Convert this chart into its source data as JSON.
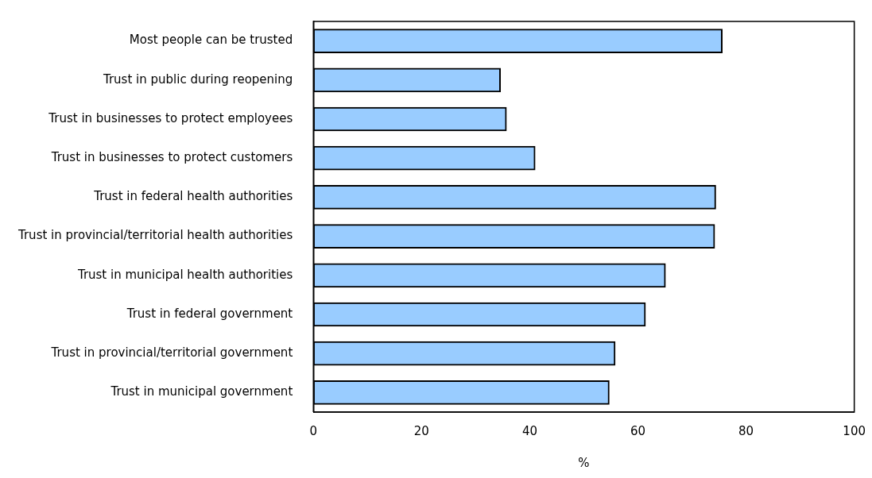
{
  "chart_data": {
    "type": "bar",
    "orientation": "horizontal",
    "xlabel": "%",
    "categories": [
      "Most people can be trusted",
      "Trust in public during reopening",
      "Trust in businesses to protect employees",
      "Trust in businesses to protect customers",
      "Trust in federal health authorities",
      "Trust in provincial/territorial health authorities",
      "Trust in municipal health authorities",
      "Trust in federal government",
      "Trust in provincial/territorial government",
      "Trust in municipal government"
    ],
    "values": [
      75.6,
      34.6,
      35.7,
      41.0,
      74.4,
      74.2,
      65.1,
      61.4,
      55.8,
      54.7
    ],
    "color": "#99ccff",
    "xlim": [
      0,
      100
    ],
    "xticks": [
      0,
      20,
      40,
      60,
      80,
      100
    ],
    "grid": false,
    "legend": false
  }
}
